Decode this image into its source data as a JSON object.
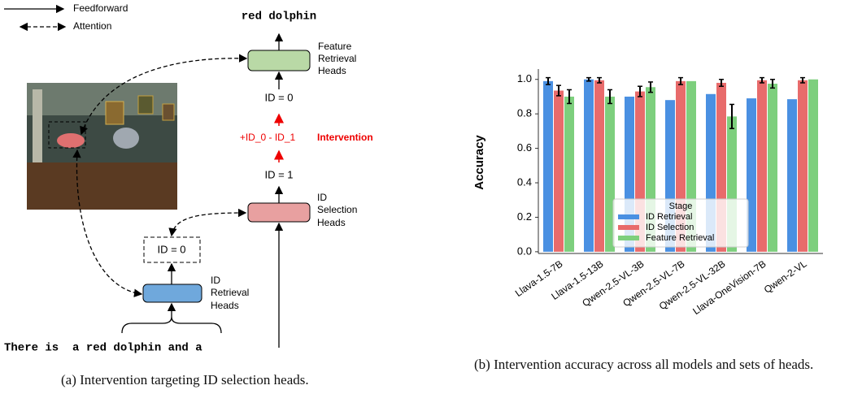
{
  "diagram": {
    "legend": [
      "Feedforward",
      "Attention"
    ],
    "output": "red dolphin",
    "feature_heads": [
      "Feature",
      "Retrieval",
      "Heads"
    ],
    "id_top": "ID = 0",
    "intervention_formula": "+ID_0 - ID_1",
    "intervention": "Intervention",
    "id_mid": "ID = 1",
    "selection_heads": [
      "ID",
      "Selection",
      "Heads"
    ],
    "id_box": "ID = 0",
    "retrieval_heads": [
      "ID",
      "Retrieval",
      "Heads"
    ],
    "input": "There is  a red dolphin and a"
  },
  "captions": {
    "a": "(a) Intervention targeting ID selection heads.",
    "b": "(b) Intervention accuracy across all models and sets of heads."
  },
  "chart_data": {
    "type": "bar",
    "y_label": "Accuracy",
    "categories": [
      "Llava-1.5-7B",
      "Llava-1.5-13B",
      "Qwen-2.5-VL-3B",
      "Qwen-2.5-VL-7B",
      "Qwen-2.5-VL-32B",
      "Llava-OneVision-7B",
      "Qwen-2-VL"
    ],
    "series": [
      {
        "name": "ID Retrieval",
        "color": "#4a90e2",
        "values": [
          0.99,
          1.0,
          0.9,
          0.88,
          0.915,
          0.89,
          0.885
        ],
        "errors": [
          0.02,
          0.01,
          0,
          0,
          0,
          0,
          0
        ]
      },
      {
        "name": "ID Selection",
        "color": "#e86b6b",
        "values": [
          0.935,
          0.995,
          0.93,
          0.99,
          0.98,
          0.995,
          0.995
        ],
        "errors": [
          0.03,
          0.015,
          0.03,
          0.02,
          0.02,
          0.015,
          0.015
        ]
      },
      {
        "name": "Feature Retrieval",
        "color": "#7dcf7d",
        "values": [
          0.9,
          0.9,
          0.955,
          0.99,
          0.785,
          0.975,
          1.0
        ],
        "errors": [
          0.04,
          0.04,
          0.03,
          0,
          0.07,
          0.025,
          0
        ]
      }
    ],
    "legend_title": "Stage",
    "legend_loc": "lower center",
    "ylim": [
      -0.01,
      1.06
    ],
    "yticks": [
      {
        "value": 0,
        "label": "0.0"
      },
      0.2,
      0.4,
      0.6,
      0.8,
      {
        "value": 1,
        "label": "1.0"
      }
    ]
  }
}
